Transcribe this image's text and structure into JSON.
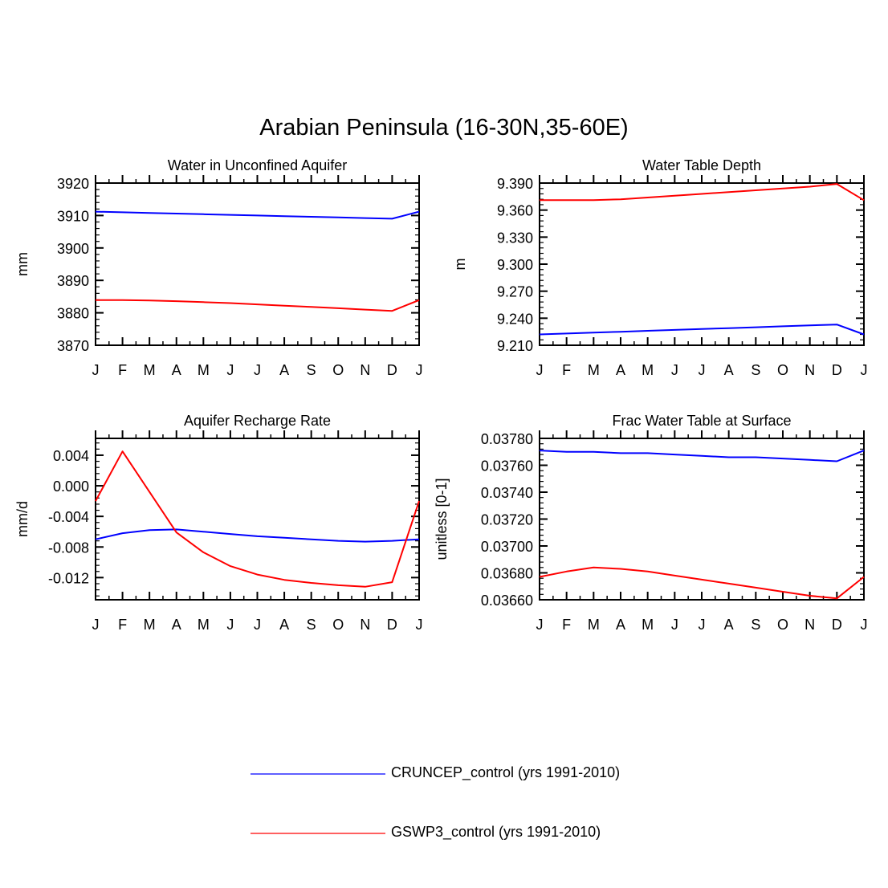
{
  "title": "Arabian Peninsula (16-30N,35-60E)",
  "colors": {
    "series_a": "#0000ff",
    "series_b": "#ff0000",
    "axis": "#000000"
  },
  "legend": [
    {
      "label": "CRUNCEP_control (yrs 1991-2010)",
      "color": "#0000ff"
    },
    {
      "label": "GSWP3_control (yrs 1991-2010)",
      "color": "#ff0000"
    }
  ],
  "chart_data": [
    {
      "type": "line",
      "title": "Water in Unconfined Aquifer",
      "xlabel": "",
      "ylabel": "mm",
      "categories": [
        "J",
        "F",
        "M",
        "A",
        "M",
        "J",
        "J",
        "A",
        "S",
        "O",
        "N",
        "D",
        "J"
      ],
      "ylim": [
        3870,
        3920
      ],
      "yticks": [
        "3870",
        "3880",
        "3890",
        "3900",
        "3910",
        "3920"
      ],
      "series": [
        {
          "name": "CRUNCEP_control (yrs 1991-2010)",
          "color": "#0000ff",
          "values": [
            3911.2,
            3911.0,
            3910.8,
            3910.6,
            3910.4,
            3910.2,
            3910.0,
            3909.8,
            3909.6,
            3909.4,
            3909.2,
            3909.0,
            3911.2
          ]
        },
        {
          "name": "GSWP3_control (yrs 1991-2010)",
          "color": "#ff0000",
          "values": [
            3883.9,
            3883.9,
            3883.8,
            3883.6,
            3883.3,
            3883.0,
            3882.6,
            3882.2,
            3881.8,
            3881.4,
            3881.0,
            3880.6,
            3883.9
          ]
        }
      ]
    },
    {
      "type": "line",
      "title": "Water Table Depth",
      "xlabel": "",
      "ylabel": "m",
      "categories": [
        "J",
        "F",
        "M",
        "A",
        "M",
        "J",
        "J",
        "A",
        "S",
        "O",
        "N",
        "D",
        "J"
      ],
      "ylim": [
        9.21,
        9.39
      ],
      "yticks": [
        "9.210",
        "9.240",
        "9.270",
        "9.300",
        "9.330",
        "9.360",
        "9.390"
      ],
      "series": [
        {
          "name": "CRUNCEP_control (yrs 1991-2010)",
          "color": "#0000ff",
          "values": [
            9.222,
            9.223,
            9.224,
            9.225,
            9.226,
            9.227,
            9.228,
            9.229,
            9.23,
            9.231,
            9.232,
            9.233,
            9.222
          ]
        },
        {
          "name": "GSWP3_control (yrs 1991-2010)",
          "color": "#ff0000",
          "values": [
            9.371,
            9.371,
            9.371,
            9.372,
            9.374,
            9.376,
            9.378,
            9.38,
            9.382,
            9.384,
            9.386,
            9.389,
            9.371
          ]
        }
      ]
    },
    {
      "type": "line",
      "title": "Aquifer Recharge Rate",
      "xlabel": "",
      "ylabel": "mm/d",
      "categories": [
        "J",
        "F",
        "M",
        "A",
        "M",
        "J",
        "J",
        "A",
        "S",
        "O",
        "N",
        "D",
        "J"
      ],
      "ylim": [
        -0.0149,
        0.0062
      ],
      "yticks": [
        "-0.012",
        "-0.008",
        "-0.004",
        "0.000",
        "0.004"
      ],
      "ytick_values": [
        -0.012,
        -0.008,
        -0.004,
        0.0,
        0.004
      ],
      "series": [
        {
          "name": "CRUNCEP_control (yrs 1991-2010)",
          "color": "#0000ff",
          "values": [
            -0.007,
            -0.0062,
            -0.0058,
            -0.0057,
            -0.006,
            -0.0063,
            -0.0066,
            -0.0068,
            -0.007,
            -0.0072,
            -0.0073,
            -0.0072,
            -0.007
          ]
        },
        {
          "name": "GSWP3_control (yrs 1991-2010)",
          "color": "#ff0000",
          "values": [
            -0.002,
            0.0045,
            -0.0008,
            -0.0061,
            -0.0087,
            -0.0105,
            -0.0116,
            -0.0123,
            -0.0127,
            -0.013,
            -0.0132,
            -0.0126,
            -0.002
          ]
        }
      ]
    },
    {
      "type": "line",
      "title": "Frac Water Table at Surface",
      "xlabel": "",
      "ylabel": "unitless [0-1]",
      "categories": [
        "J",
        "F",
        "M",
        "A",
        "M",
        "J",
        "J",
        "A",
        "S",
        "O",
        "N",
        "D",
        "J"
      ],
      "ylim": [
        0.0366,
        0.0378
      ],
      "yticks": [
        "0.03660",
        "0.03680",
        "0.03700",
        "0.03720",
        "0.03740",
        "0.03760",
        "0.03780"
      ],
      "series": [
        {
          "name": "CRUNCEP_control (yrs 1991-2010)",
          "color": "#0000ff",
          "values": [
            0.03771,
            0.0377,
            0.0377,
            0.03769,
            0.03769,
            0.03768,
            0.03767,
            0.03766,
            0.03766,
            0.03765,
            0.03764,
            0.03763,
            0.03771
          ]
        },
        {
          "name": "GSWP3_control (yrs 1991-2010)",
          "color": "#ff0000",
          "values": [
            0.03677,
            0.03681,
            0.03684,
            0.03683,
            0.03681,
            0.03678,
            0.03675,
            0.03672,
            0.03669,
            0.03666,
            0.03663,
            0.03661,
            0.03677
          ]
        }
      ]
    }
  ]
}
